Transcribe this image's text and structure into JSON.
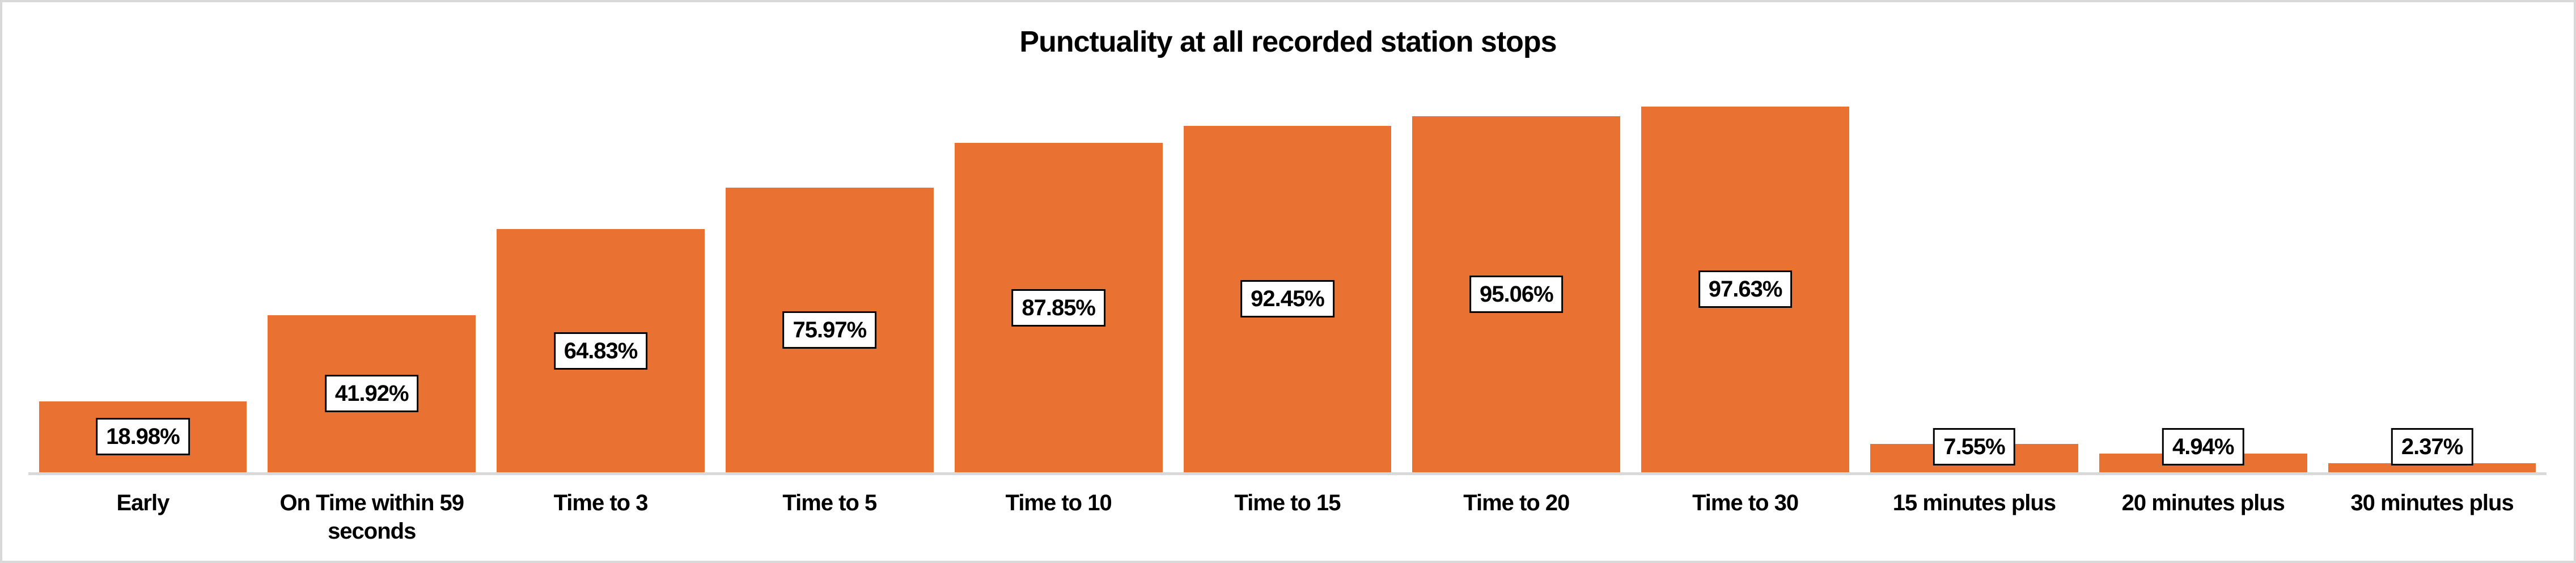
{
  "chart_data": {
    "type": "bar",
    "title": "Punctuality at all recorded station stops",
    "categories": [
      "Early",
      "On Time within 59 seconds",
      "Time to 3",
      "Time to 5",
      "Time to 10",
      "Time to 15",
      "Time to 20",
      "Time to 30",
      "15 minutes plus",
      "20 minutes plus",
      "30 minutes plus"
    ],
    "values": [
      18.98,
      41.92,
      64.83,
      75.97,
      87.85,
      92.45,
      95.06,
      97.63,
      7.55,
      4.94,
      2.37
    ],
    "value_labels": [
      "18.98%",
      "41.92%",
      "64.83%",
      "75.97%",
      "87.85%",
      "92.45%",
      "95.06%",
      "97.63%",
      "7.55%",
      "4.94%",
      "2.37%"
    ],
    "xlabel": "",
    "ylabel": "",
    "ylim": [
      0,
      100
    ],
    "grid": false,
    "legend": false,
    "bar_color": "#E97132",
    "axis_line_color": "#D9D9D9",
    "frame_border_color": "#D9D9D9",
    "title_color": "#000000",
    "tick_label_color": "#000000",
    "data_label_style": {
      "fill": "#FFFFFF",
      "border_color": "#000000",
      "text_color": "#000000"
    }
  }
}
